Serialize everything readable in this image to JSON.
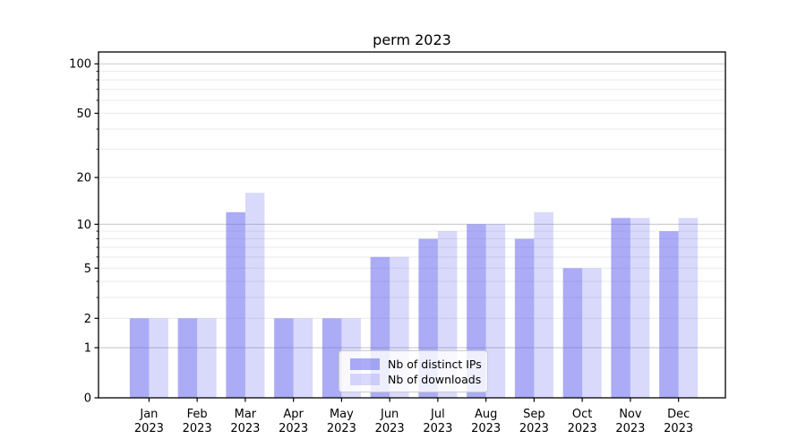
{
  "chart_data": {
    "type": "bar",
    "title": "perm 2023",
    "months": [
      "Jan",
      "Feb",
      "Mar",
      "Apr",
      "May",
      "Jun",
      "Jul",
      "Aug",
      "Sep",
      "Oct",
      "Nov",
      "Dec"
    ],
    "year": "2023",
    "categories": [
      "Jan 2023",
      "Feb 2023",
      "Mar 2023",
      "Apr 2023",
      "May 2023",
      "Jun 2023",
      "Jul 2023",
      "Aug 2023",
      "Sep 2023",
      "Oct 2023",
      "Nov 2023",
      "Dec 2023"
    ],
    "series": [
      {
        "name": "Nb of distinct IPs",
        "color": "rgba(102,102,238,0.55)",
        "values": [
          2,
          2,
          12,
          2,
          2,
          6,
          8,
          10,
          8,
          5,
          11,
          9
        ]
      },
      {
        "name": "Nb of downloads",
        "color": "rgba(102,102,238,0.25)",
        "values": [
          2,
          2,
          16,
          2,
          2,
          6,
          9,
          10,
          12,
          5,
          11,
          11
        ]
      }
    ],
    "yscale": "log1p",
    "yticks": [
      0,
      1,
      2,
      5,
      10,
      20,
      50,
      100
    ],
    "major_gridlines": [
      1,
      10,
      100
    ],
    "minor_gridlines": [
      2,
      3,
      4,
      5,
      6,
      7,
      8,
      9,
      20,
      30,
      40,
      50,
      60,
      70,
      80,
      90
    ],
    "ylim": [
      0,
      118
    ],
    "grid": "on",
    "legend_position": "lower center",
    "colors": {
      "major_grid": "#c9c9c9",
      "minor_grid": "#e9e9e9",
      "axis": "#000000",
      "legend_border": "#cccccc"
    }
  }
}
